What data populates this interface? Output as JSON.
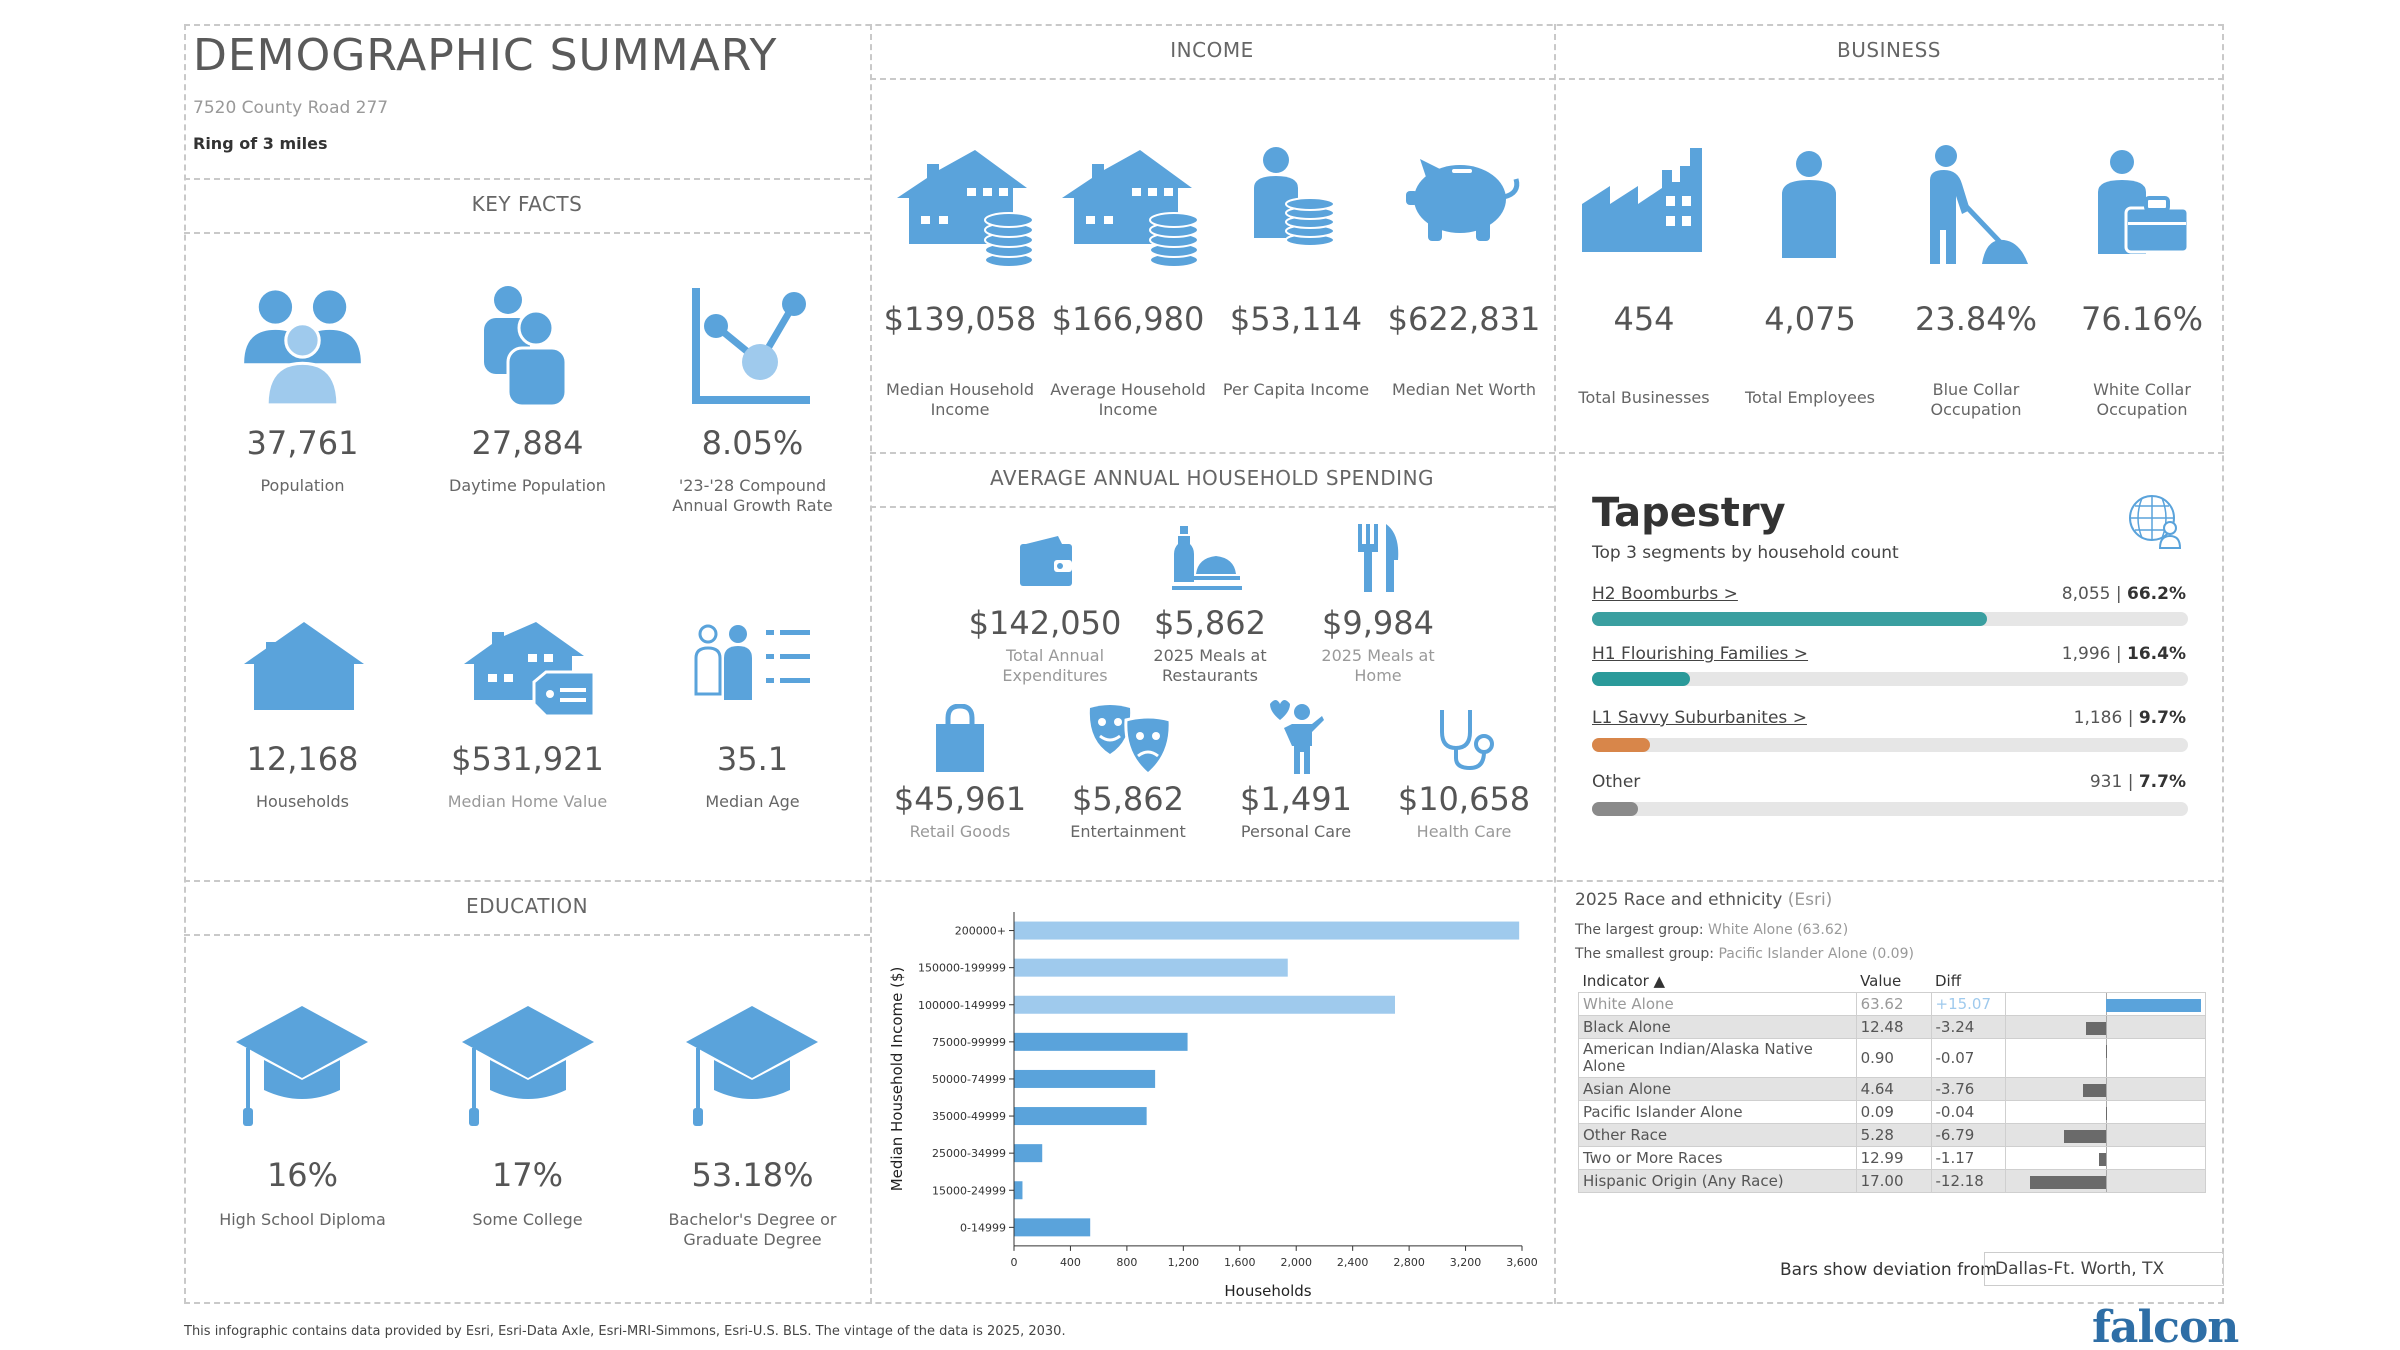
{
  "header": {
    "title": "DEMOGRAPHIC SUMMARY",
    "address": "7520 County Road 277",
    "ring": "Ring of 3 miles"
  },
  "colors": {
    "accent": "#5aa3db",
    "accent_light": "#9fcaed",
    "teal": "#3a9fa0",
    "orange": "#d8864a",
    "gray": "#9a9a9a",
    "dark_bar": "#6a6a6a"
  },
  "key_facts": {
    "heading": "KEY FACTS",
    "items": [
      {
        "icon": "people-icon",
        "value": "37,761",
        "label": "Population"
      },
      {
        "icon": "daytime-people-icon",
        "value": "27,884",
        "label": "Daytime Population"
      },
      {
        "icon": "growth-chart-icon",
        "value": "8.05%",
        "label": "'23-'28 Compound Annual Growth Rate"
      },
      {
        "icon": "house-icon",
        "value": "12,168",
        "label": "Households"
      },
      {
        "icon": "home-value-icon",
        "value": "$531,921",
        "label": "Median Home Value"
      },
      {
        "icon": "age-list-icon",
        "value": "35.1",
        "label": "Median Age"
      }
    ]
  },
  "income": {
    "heading": "INCOME",
    "items": [
      {
        "icon": "houses-coins-icon",
        "value": "$139,058",
        "label": "Median Household Income"
      },
      {
        "icon": "houses-coins-icon",
        "value": "$166,980",
        "label": "Average Household Income"
      },
      {
        "icon": "person-coins-icon",
        "value": "$53,114",
        "label": "Per Capita Income"
      },
      {
        "icon": "piggy-bank-icon",
        "value": "$622,831",
        "label": "Median Net Worth"
      }
    ]
  },
  "business": {
    "heading": "BUSINESS",
    "items": [
      {
        "icon": "factory-icon",
        "value": "454",
        "label": "Total Businesses"
      },
      {
        "icon": "employee-icon",
        "value": "4,075",
        "label": "Total Employees"
      },
      {
        "icon": "blue-collar-icon",
        "value": "23.84%",
        "label": "Blue Collar Occupation"
      },
      {
        "icon": "white-collar-icon",
        "value": "76.16%",
        "label": "White Collar Occupation"
      }
    ]
  },
  "spending": {
    "heading": "AVERAGE ANNUAL HOUSEHOLD SPENDING",
    "items": [
      {
        "icon": "wallet-icon",
        "value": "$142,050",
        "label": "Total Annual Expenditures"
      },
      {
        "icon": "restaurant-meal-icon",
        "value": "$5,862",
        "label": "2025 Meals at Restaurants"
      },
      {
        "icon": "fork-knife-icon",
        "value": "$9,984",
        "label": "2025 Meals at Home"
      },
      {
        "icon": "shopping-bag-icon",
        "value": "$45,961",
        "label": "Retail Goods"
      },
      {
        "icon": "theater-masks-icon",
        "value": "$5,862",
        "label": "Entertainment"
      },
      {
        "icon": "personal-care-icon",
        "value": "$1,491",
        "label": "Personal Care"
      },
      {
        "icon": "stethoscope-icon",
        "value": "$10,658",
        "label": "Health Care"
      }
    ]
  },
  "tapestry": {
    "title": "Tapestry",
    "subtitle": "Top 3 segments by household count",
    "segments": [
      {
        "name": "H2 Boomburbs >",
        "count": "8,055",
        "pct": "66.2%",
        "share": 0.662,
        "color": "#3a9fa0"
      },
      {
        "name": "H1 Flourishing Families >",
        "count": "1,996",
        "pct": "16.4%",
        "share": 0.164,
        "color": "#2a9a9a"
      },
      {
        "name": "L1 Savvy Suburbanites >",
        "count": "1,186",
        "pct": "9.7%",
        "share": 0.097,
        "color": "#d8864a"
      },
      {
        "name": "Other",
        "count": "931",
        "pct": "7.7%",
        "share": 0.077,
        "color": "#8a8a8a"
      }
    ]
  },
  "education": {
    "heading": "EDUCATION",
    "items": [
      {
        "icon": "graduation-cap-icon",
        "value": "16%",
        "label": "High School Diploma"
      },
      {
        "icon": "graduation-cap-icon",
        "value": "17%",
        "label": "Some College"
      },
      {
        "icon": "graduation-cap-icon",
        "value": "53.18%",
        "label": "Bachelor's Degree or Graduate Degree"
      }
    ]
  },
  "chart_data": {
    "type": "bar",
    "orientation": "horizontal",
    "categories": [
      "200000+",
      "150000-199999",
      "100000-149999",
      "75000-99999",
      "50000-74999",
      "35000-49999",
      "25000-34999",
      "15000-24999",
      "0-14999"
    ],
    "values": [
      3580,
      1940,
      2700,
      1230,
      1000,
      940,
      200,
      60,
      540
    ],
    "highlight": [
      true,
      true,
      true,
      false,
      false,
      false,
      false,
      false,
      false
    ],
    "xlabel": "Households",
    "ylabel": "Median Household Income ($)",
    "xlim": [
      0,
      3600
    ],
    "xticks": [
      "0",
      "400",
      "800",
      "1,200",
      "1,600",
      "2,000",
      "2,400",
      "2,800",
      "3,200",
      "3,600"
    ]
  },
  "race": {
    "heading": "2025 Race and ethnicity",
    "heading_source": "(Esri)",
    "largest_prefix": "The largest group:",
    "largest": "White Alone (63.62)",
    "smallest_prefix": "The smallest group:",
    "smallest": "Pacific Islander Alone (0.09)",
    "columns": [
      "Indicator ▲",
      "Value",
      "Diff"
    ],
    "rows": [
      {
        "indicator": "White Alone",
        "value": "63.62",
        "diff": "+15.07",
        "num": 15.07
      },
      {
        "indicator": "Black Alone",
        "value": "12.48",
        "diff": "-3.24",
        "num": -3.24
      },
      {
        "indicator": "American Indian/Alaska Native Alone",
        "value": "0.90",
        "diff": "-0.07",
        "num": -0.07
      },
      {
        "indicator": "Asian Alone",
        "value": "4.64",
        "diff": "-3.76",
        "num": -3.76
      },
      {
        "indicator": "Pacific Islander Alone",
        "value": "0.09",
        "diff": "-0.04",
        "num": -0.04
      },
      {
        "indicator": "Other Race",
        "value": "5.28",
        "diff": "-6.79",
        "num": -6.79
      },
      {
        "indicator": "Two or More Races",
        "value": "12.99",
        "diff": "-1.17",
        "num": -1.17
      },
      {
        "indicator": "Hispanic Origin (Any Race)",
        "value": "17.00",
        "diff": "-12.18",
        "num": -12.18
      }
    ],
    "deviation_label": "Bars show deviation from",
    "deviation_region": "Dallas-Ft. Worth, TX"
  },
  "footer": {
    "note": "This infographic contains data provided by Esri, Esri-Data Axle, Esri-MRI-Simmons, Esri-U.S. BLS. The vintage of the data is 2025, 2030.",
    "logo": "falcon"
  }
}
